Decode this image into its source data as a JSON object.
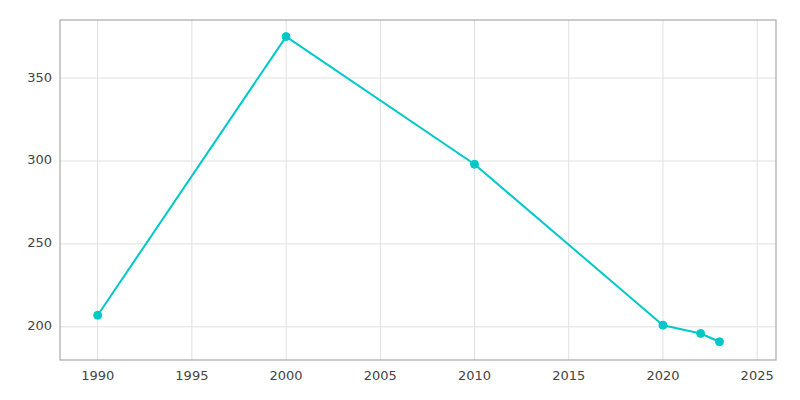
{
  "chart_data": {
    "type": "line",
    "x": [
      1990,
      2000,
      2010,
      2020,
      2022,
      2023
    ],
    "values": [
      207,
      375,
      298,
      201,
      196,
      191
    ],
    "color": "#00C8C8",
    "marker": "circle",
    "xlim": [
      1988,
      2026
    ],
    "ylim": [
      180,
      385
    ],
    "xticks": [
      1990,
      1995,
      2000,
      2005,
      2010,
      2015,
      2020,
      2025
    ],
    "yticks": [
      200,
      250,
      300,
      350
    ],
    "grid": true
  }
}
